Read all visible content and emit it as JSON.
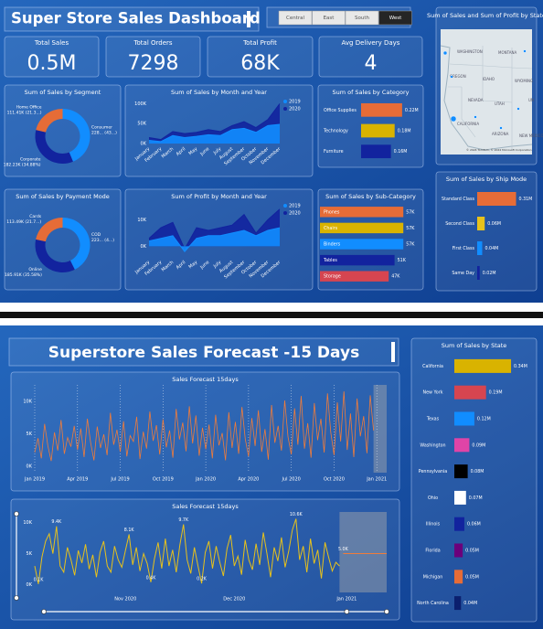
{
  "header": {
    "title": "Super Store Sales Dashboard"
  },
  "slicer": {
    "options": [
      "Central",
      "East",
      "South",
      "West"
    ],
    "selected": 3
  },
  "kpis": [
    {
      "label": "Total Sales",
      "value": "0.5M"
    },
    {
      "label": "Total Orders",
      "value": "7298"
    },
    {
      "label": "Total Profit",
      "value": "68K"
    },
    {
      "label": "Avg Delivery Days",
      "value": "4"
    }
  ],
  "map": {
    "title": "Sum of Sales and Sum of Profit by State",
    "labels": [
      "WASHINGTON",
      "MONTANA",
      "OREGON",
      "IDAHO",
      "WYOMING",
      "NEVADA",
      "UTAH",
      "CALIFORNIA",
      "ARIZONA",
      "NEW MEXICO",
      "UN"
    ],
    "attribution": "© 2024 TomTom, © 2024 Microsoft Corporation"
  },
  "forecast_header": {
    "title": "Superstore Sales Forecast -15 Days"
  },
  "chart_data": [
    {
      "type": "donut",
      "title": "Sum of Sales by Segment",
      "categories": [
        "Consumer",
        "Corporate",
        "Home Office"
      ],
      "values": [
        228.76,
        182.23,
        111.41
      ],
      "value_labels": [
        "228... (43...)",
        "182.23K (34.88%)",
        "111.41K (21.3...)"
      ],
      "colors": [
        "#118dff",
        "#12239e",
        "#e66c37"
      ]
    },
    {
      "type": "area",
      "title": "Sum of Sales by Month and Year",
      "categories": [
        "January",
        "February",
        "March",
        "April",
        "May",
        "June",
        "July",
        "August",
        "September",
        "October",
        "November",
        "December"
      ],
      "series": [
        {
          "name": "2019",
          "color": "#118dff",
          "values": [
            8000,
            5000,
            20000,
            15000,
            18000,
            22000,
            20000,
            35000,
            38000,
            28000,
            45000,
            48000
          ]
        },
        {
          "name": "2020",
          "color": "#12239e",
          "values": [
            15000,
            10000,
            30000,
            25000,
            28000,
            35000,
            30000,
            45000,
            55000,
            40000,
            60000,
            100000
          ]
        }
      ],
      "ylim": [
        0,
        110000
      ],
      "yticks": [
        {
          "value": 0,
          "label": "0K"
        },
        {
          "value": 50000,
          "label": "50K"
        },
        {
          "value": 100000,
          "label": "100K"
        }
      ]
    },
    {
      "type": "barh",
      "title": "Sum of Sales by Category",
      "categories": [
        "Office Supplies",
        "Technology",
        "Furniture"
      ],
      "values": [
        0.22,
        0.18,
        0.16
      ],
      "value_labels": [
        "0.22M",
        "0.18M",
        "0.16M"
      ],
      "colors": [
        "#e66c37",
        "#d9b300",
        "#12239e"
      ],
      "xlim": [
        0,
        0.25
      ]
    },
    {
      "type": "donut",
      "title": "Sum of Sales by Payment Mode",
      "categories": [
        "COD",
        "Online",
        "Cards"
      ],
      "values": [
        223.05,
        185.91,
        113.49
      ],
      "value_labels": [
        "223... (4...)",
        "185.91K (35.58%)",
        "113.49K (21.7...)"
      ],
      "colors": [
        "#118dff",
        "#12239e",
        "#e66c37"
      ]
    },
    {
      "type": "area",
      "title": "Sum of Profit by Month and Year",
      "categories": [
        "January",
        "February",
        "March",
        "April",
        "May",
        "June",
        "July",
        "August",
        "September",
        "October",
        "November",
        "December"
      ],
      "series": [
        {
          "name": "2019",
          "color": "#118dff",
          "values": [
            2000,
            3000,
            4000,
            -2000,
            3000,
            4000,
            4000,
            5000,
            6000,
            4000,
            6000,
            7000
          ]
        },
        {
          "name": "2020",
          "color": "#12239e",
          "values": [
            3000,
            7000,
            9000,
            -1000,
            7000,
            6000,
            7000,
            8000,
            12000,
            5000,
            10000,
            14000
          ]
        }
      ],
      "ylim": [
        -4000,
        16000
      ],
      "yticks": [
        {
          "value": 0,
          "label": "0K"
        },
        {
          "value": 10000,
          "label": "10K"
        }
      ]
    },
    {
      "type": "barh",
      "title": "Sum of Sales by Sub-Category",
      "categories": [
        "Phones",
        "Chairs",
        "Binders",
        "Tables",
        "Storage"
      ],
      "values": [
        57,
        57,
        57,
        51,
        47
      ],
      "value_labels": [
        "57K",
        "57K",
        "57K",
        "51K",
        "47K"
      ],
      "colors": [
        "#e66c37",
        "#d9b300",
        "#118dff",
        "#12239e",
        "#d64550"
      ],
      "xlim": [
        0,
        60
      ]
    },
    {
      "type": "barh",
      "title": "Sum of Sales by Ship Mode",
      "categories": [
        "Standard Class",
        "Second Class",
        "First Class",
        "Same Day"
      ],
      "values": [
        0.31,
        0.06,
        0.04,
        0.02
      ],
      "value_labels": [
        "0.31M",
        "0.06M",
        "0.04M",
        "0.02M"
      ],
      "colors": [
        "#e66c37",
        "#e8c21b",
        "#118dff",
        "#12239e"
      ],
      "xlim": [
        0,
        0.35
      ]
    },
    {
      "type": "line",
      "title": "Sales Forecast 15days",
      "series": [
        {
          "name": "Sales",
          "color": "#f07c3a",
          "values": [
            2100,
            4300,
            1200,
            6500,
            3100,
            800,
            5200,
            2400,
            7100,
            1900,
            4400,
            3000,
            6200,
            2500,
            5800,
            1400,
            7300,
            3600,
            900,
            6100,
            2800,
            4900,
            1700,
            8200,
            3300,
            5600,
            2200,
            6900,
            1500,
            4700,
            3800,
            7600,
            1100,
            5300,
            2700,
            8400,
            3900,
            6300,
            1800,
            7200,
            2900,
            5500,
            1300,
            8800,
            4100,
            6700,
            2300,
            9200,
            3500,
            7800,
            1600,
            5900,
            2600,
            6400,
            1200,
            7900,
            3200,
            5100,
            900,
            8300,
            2800,
            6800,
            1900,
            9100,
            4200,
            1500,
            7400,
            3100,
            8600,
            2200,
            5700,
            1000,
            9400,
            3600,
            6200,
            2400,
            10100,
            4500,
            1800,
            8900,
            3300,
            10800,
            2700,
            6600,
            1300,
            9700,
            4000,
            7300,
            2100,
            11200,
            5200,
            1700,
            9800,
            3800,
            11500,
            2500,
            8100,
            1400,
            10400,
            4600,
            7700,
            2000,
            10900,
            5500
          ]
        }
      ],
      "xlim": [
        0,
        107
      ],
      "xticks": [
        {
          "value": 0,
          "label": "Jan 2019"
        },
        {
          "value": 13,
          "label": "Apr 2019"
        },
        {
          "value": 26,
          "label": "Jul 2019"
        },
        {
          "value": 39,
          "label": "Oct 2019"
        },
        {
          "value": 52,
          "label": "Jan 2020"
        },
        {
          "value": 65,
          "label": "Apr 2020"
        },
        {
          "value": 78,
          "label": "Jul 2020"
        },
        {
          "value": 91,
          "label": "Oct 2020"
        },
        {
          "value": 104,
          "label": "Jan 2021"
        }
      ],
      "ylim": [
        -1000,
        12500
      ],
      "yticks": [
        {
          "value": 0,
          "label": "0K"
        },
        {
          "value": 5000,
          "label": "5K"
        },
        {
          "value": 10000,
          "label": "10K"
        }
      ],
      "xgrid": true
    },
    {
      "type": "line",
      "title": "Sales Forecast 15days",
      "series": [
        {
          "name": "Sales",
          "color": "#e8c21b",
          "values": [
            3000,
            100,
            4500,
            7000,
            8200,
            5000,
            9400,
            3000,
            2000,
            6000,
            4000,
            1500,
            5500,
            3500,
            6500,
            2500,
            4800,
            1200,
            5200,
            7000,
            3000,
            2000,
            6200,
            4000,
            2800,
            5500,
            8100,
            3200,
            6000,
            2200,
            5000,
            3400,
            400,
            4200,
            6800,
            2600,
            7400,
            3000,
            5600,
            2000,
            6400,
            9700,
            4000,
            1800,
            6000,
            3000,
            200,
            5200,
            7000,
            2600,
            6200,
            3600,
            1400,
            5800,
            8000,
            3000,
            4600,
            1600,
            7200,
            4000,
            2400,
            6600,
            3200,
            8400,
            5000,
            1200,
            6000,
            3800,
            7600,
            2800,
            5400,
            8800,
            10600,
            4000,
            6200,
            2000,
            7400,
            3400,
            5600,
            1000,
            6800,
            4400,
            2200,
            3600,
            3000
          ],
          "value_labels": [
            null,
            "0.1K",
            null,
            null,
            null,
            null,
            "9.4K",
            null,
            null,
            null,
            null,
            null,
            null,
            null,
            null,
            null,
            null,
            null,
            null,
            null,
            null,
            null,
            null,
            null,
            null,
            null,
            "8.1K",
            null,
            null,
            null,
            null,
            null,
            "0.4K",
            null,
            null,
            null,
            null,
            null,
            null,
            null,
            null,
            "9.7K",
            null,
            null,
            null,
            null,
            "0.2K",
            null,
            null,
            null,
            null,
            null,
            null,
            null,
            null,
            null,
            null,
            null,
            null,
            null,
            null,
            null,
            null,
            null,
            null,
            null,
            null,
            null,
            null,
            null,
            null,
            null,
            "10.6K",
            null,
            null,
            null,
            null,
            null,
            null,
            null,
            null,
            null,
            null,
            null,
            null
          ]
        },
        {
          "name": "Forecast",
          "color": "#f07c3a",
          "x": [
            85,
            97
          ],
          "values": [
            5000,
            5000
          ],
          "value_labels": [
            "5.0K",
            null
          ]
        }
      ],
      "xlim": [
        0,
        97
      ],
      "xticks": [
        {
          "value": 25,
          "label": "Nov 2020"
        },
        {
          "value": 55,
          "label": "Dec 2020"
        },
        {
          "value": 86,
          "label": "Jan 2021"
        }
      ],
      "ylim": [
        -1250,
        11700
      ],
      "yticks": [
        {
          "value": 0,
          "label": "0K"
        },
        {
          "value": 5000,
          "label": "5K"
        },
        {
          "value": 10000,
          "label": "10K"
        }
      ],
      "xgrid": false
    },
    {
      "type": "barh",
      "title": "Sum of Sales by State",
      "categories": [
        "California",
        "New York",
        "Texas",
        "Washington",
        "Pennsylvania",
        "Ohio",
        "Illinois",
        "Florida",
        "Michigan",
        "North Carolina"
      ],
      "values": [
        0.34,
        0.19,
        0.12,
        0.09,
        0.08,
        0.07,
        0.06,
        0.05,
        0.05,
        0.04
      ],
      "value_labels": [
        "0.34M",
        "0.19M",
        "0.12M",
        "0.09M",
        "0.08M",
        "0.07M",
        "0.06M",
        "0.05M",
        "0.05M",
        "0.04M"
      ],
      "colors": [
        "#d9b300",
        "#d64550",
        "#118dff",
        "#e044a7",
        "#000000",
        "#ffffff",
        "#12239e",
        "#6b007b",
        "#e66c37",
        "#0b1f6e"
      ],
      "xlim": [
        0,
        0.4
      ]
    }
  ]
}
